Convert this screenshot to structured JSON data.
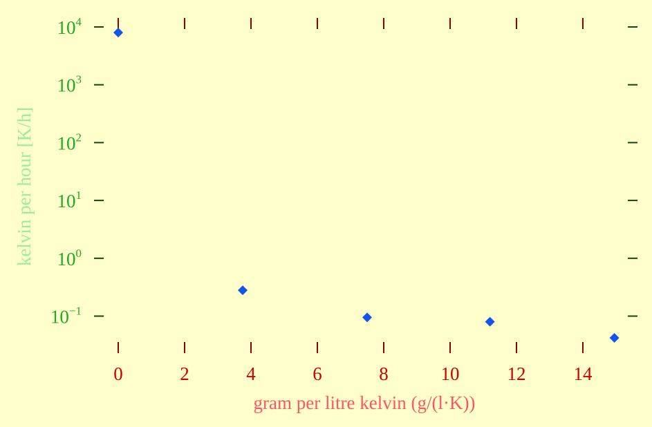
{
  "chart_data": {
    "type": "scatter",
    "xlabel": "gram per litre kelvin (g/(l·K))",
    "ylabel": "kelvin per hour [K/h]",
    "xlim": [
      0,
      15
    ],
    "ylim": [
      0.02,
      10000
    ],
    "yscale": "log",
    "x_ticks": [
      0,
      2,
      4,
      6,
      8,
      10,
      12,
      14
    ],
    "y_ticks": [
      {
        "value": 10000,
        "base": "10",
        "exp": "4"
      },
      {
        "value": 1000,
        "base": "10",
        "exp": "3"
      },
      {
        "value": 100,
        "base": "10",
        "exp": "2"
      },
      {
        "value": 10,
        "base": "10",
        "exp": "1"
      },
      {
        "value": 1,
        "base": "10",
        "exp": "0"
      },
      {
        "value": 0.1,
        "base": "10",
        "exp": "−1"
      }
    ],
    "grid": false,
    "series": [
      {
        "color": "#1155ee",
        "marker": "diamond",
        "points": [
          {
            "x": 0.0,
            "y": 8000
          },
          {
            "x": 3.75,
            "y": 0.28
          },
          {
            "x": 7.5,
            "y": 0.095
          },
          {
            "x": 11.2,
            "y": 0.08
          },
          {
            "x": 14.95,
            "y": 0.042
          }
        ]
      }
    ],
    "colors": {
      "background": "#ffffcc",
      "x_tick_marks": "#880000",
      "x_tick_labels": "#cc0000",
      "y_tick_marks": "#114411",
      "y_tick_labels": "#22aa22",
      "xlabel": "#ff5566",
      "ylabel": "#99ee99"
    }
  }
}
